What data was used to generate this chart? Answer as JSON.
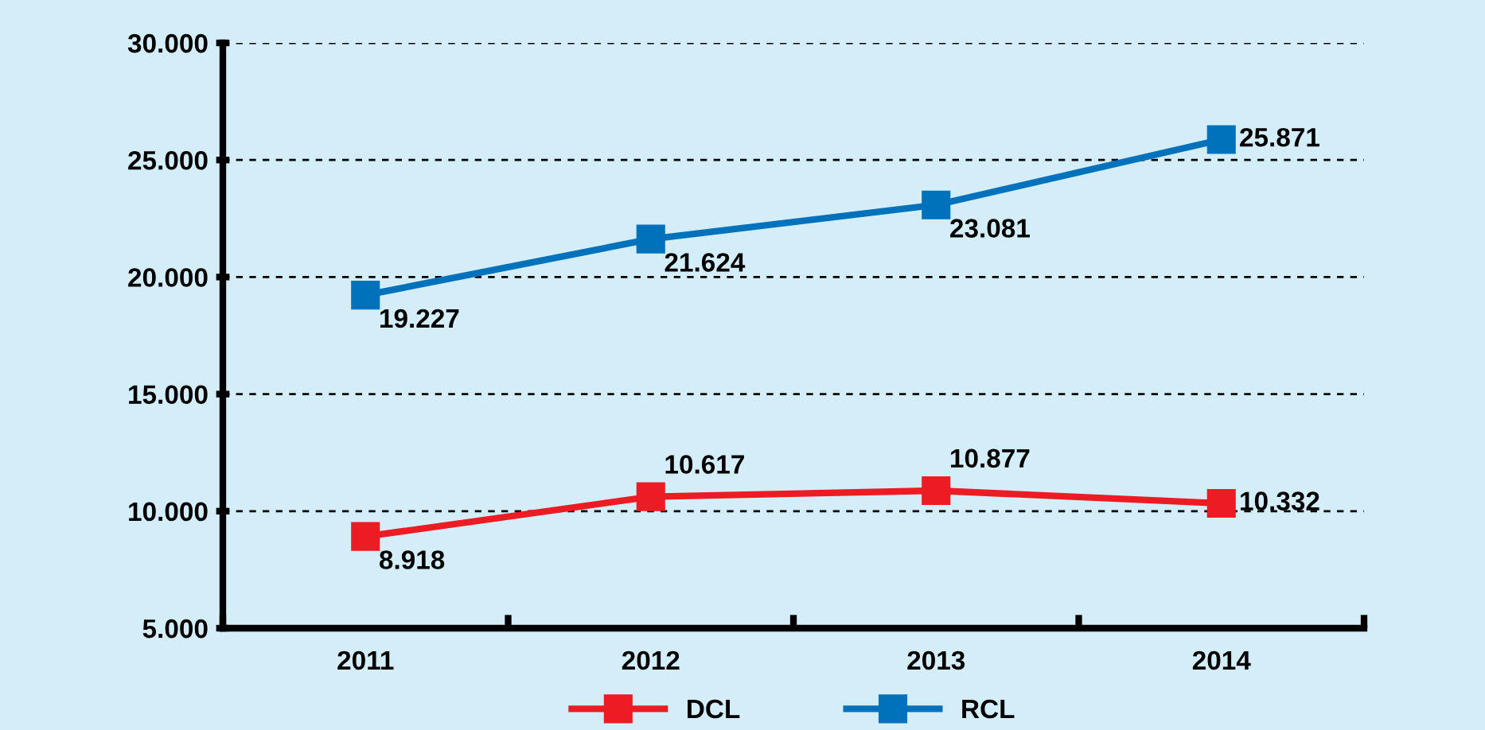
{
  "chart_data": {
    "type": "line",
    "categories": [
      "2011",
      "2012",
      "2013",
      "2014"
    ],
    "series": [
      {
        "name": "DCL",
        "color": "#ed1c24",
        "values": [
          8918,
          10617,
          10877,
          10332
        ],
        "value_labels": [
          "8.918",
          "10.617",
          "10.877",
          "10.332"
        ]
      },
      {
        "name": "RCL",
        "color": "#0072bc",
        "values": [
          19227,
          21624,
          23081,
          25871
        ],
        "value_labels": [
          "19.227",
          "21.624",
          "23.081",
          "25.871"
        ]
      }
    ],
    "ylim": [
      5000,
      30000
    ],
    "yticks": [
      {
        "value": 5000,
        "label": "5.000"
      },
      {
        "value": 10000,
        "label": "10.000"
      },
      {
        "value": 15000,
        "label": "15.000"
      },
      {
        "value": 20000,
        "label": "20.000"
      },
      {
        "value": 25000,
        "label": "25.000"
      },
      {
        "value": 30000,
        "label": "30.000"
      }
    ],
    "grid": "y",
    "legend": "bottom",
    "marker": "square",
    "line_style": "solid"
  }
}
